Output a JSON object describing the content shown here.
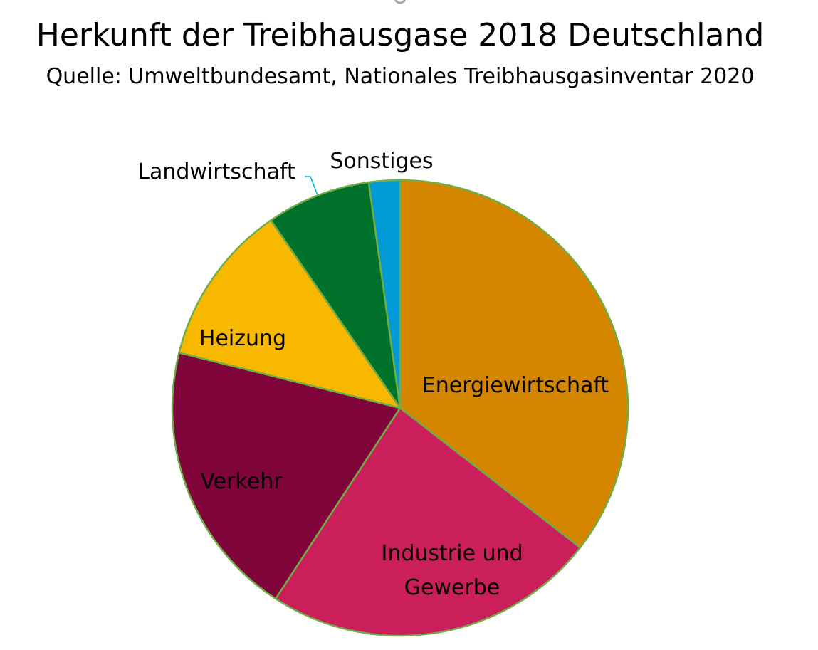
{
  "chart_data": {
    "type": "pie",
    "title": "Herkunft der Treibhausgase 2018 Deutschland",
    "subtitle": "Quelle: Umweltbundesamt, Nationales Treibhausgasinventar 2020",
    "start_angle_deg": 0,
    "direction": "clockwise",
    "slices": [
      {
        "label": "Energiewirtschaft",
        "label_lines": [
          "Energiewirtschaft"
        ],
        "value": 35.5,
        "color": "#d58600"
      },
      {
        "label": "Industrie und Gewerbe",
        "label_lines": [
          "Industrie und",
          "Gewerbe"
        ],
        "value": 23.7,
        "color": "#cb1f5c"
      },
      {
        "label": "Verkehr",
        "label_lines": [
          "Verkehr"
        ],
        "value": 19.7,
        "color": "#7f053b"
      },
      {
        "label": "Heizung",
        "label_lines": [
          "Heizung"
        ],
        "value": 11.5,
        "color": "#f9b800"
      },
      {
        "label": "Landwirtschaft",
        "label_lines": [
          "Landwirtschaft"
        ],
        "value": 7.4,
        "color": "#00722b"
      },
      {
        "label": "Sonstiges",
        "label_lines": [
          "Sonstiges"
        ],
        "value": 2.2,
        "color": "#009bd6"
      }
    ],
    "legend": "none",
    "border_color": "#70ad47",
    "leader_line_color": "#00b0f0"
  }
}
